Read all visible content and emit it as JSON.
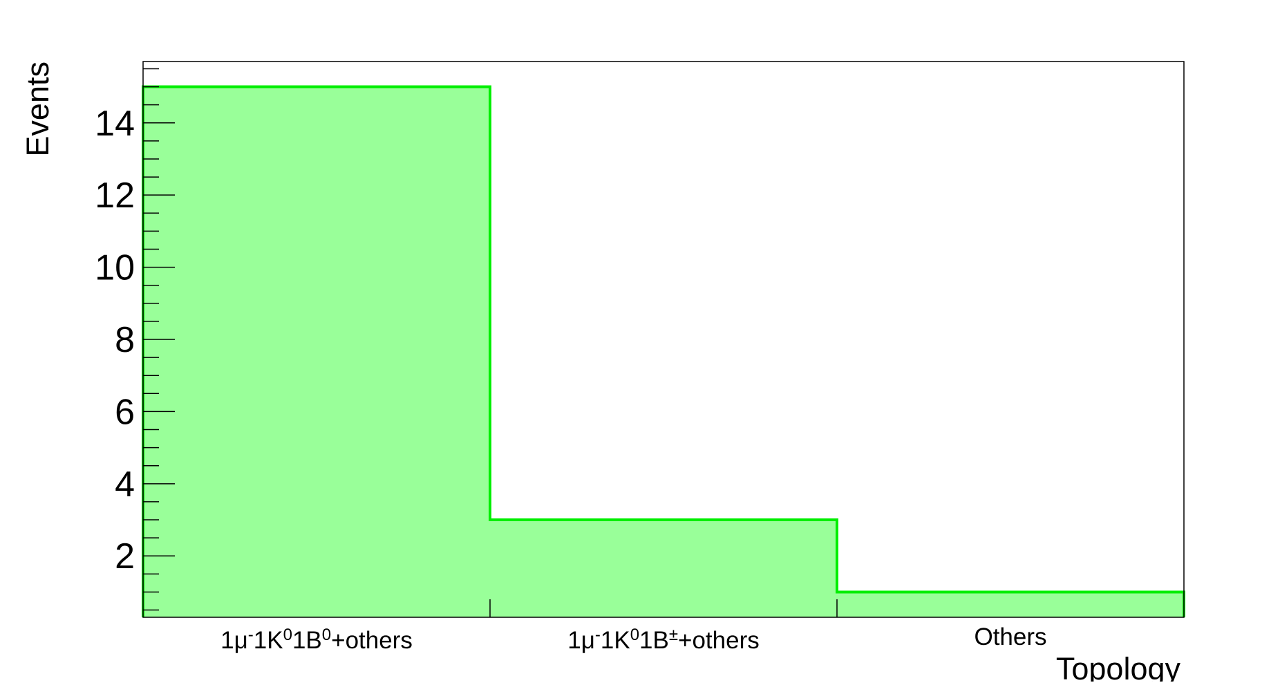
{
  "chart_data": {
    "type": "bar",
    "categories": [
      {
        "main": "1μ",
        "sup1": "-",
        "mid1": "1K",
        "sup2": "0",
        "mid2": "1B",
        "sup3": "0",
        "tail": "+others"
      },
      {
        "main": "1μ",
        "sup1": "-",
        "mid1": "1K",
        "sup2": "0",
        "mid2": "1B",
        "sup3": "±",
        "tail": "+others"
      },
      {
        "main": "Others",
        "sup1": "",
        "mid1": "",
        "sup2": "",
        "mid2": "",
        "sup3": "",
        "tail": ""
      }
    ],
    "values": [
      15,
      3,
      1
    ],
    "xlabel": "Topology",
    "ylabel": "Events",
    "ylim": [
      0.3,
      15.7
    ],
    "yticks": [
      2,
      4,
      6,
      8,
      10,
      12,
      14
    ],
    "ytick_labels": [
      "2",
      "4",
      "6",
      "8",
      "10",
      "12",
      "14"
    ],
    "grid": false,
    "fill_color": "#99ff99",
    "line_color": "#00ee00"
  }
}
